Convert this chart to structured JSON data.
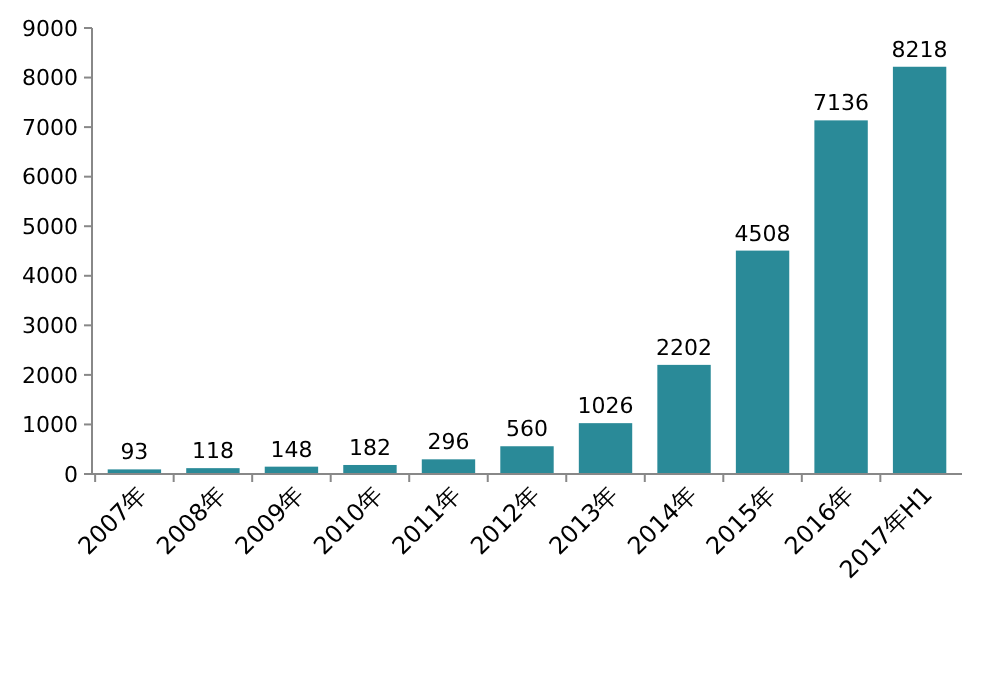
{
  "chart_data": {
    "type": "bar",
    "categories": [
      "2007年",
      "2008年",
      "2009年",
      "2010年",
      "2011年",
      "2012年",
      "2013年",
      "2014年",
      "2015年",
      "2016年",
      "2017年H1"
    ],
    "values": [
      93,
      118,
      148,
      182,
      296,
      560,
      1026,
      2202,
      4508,
      7136,
      8218
    ],
    "color": "#2a8a98",
    "ylim": [
      0,
      9000
    ],
    "yticks": [
      0,
      1000,
      2000,
      3000,
      4000,
      5000,
      6000,
      7000,
      8000,
      9000
    ],
    "data_labels": true
  }
}
